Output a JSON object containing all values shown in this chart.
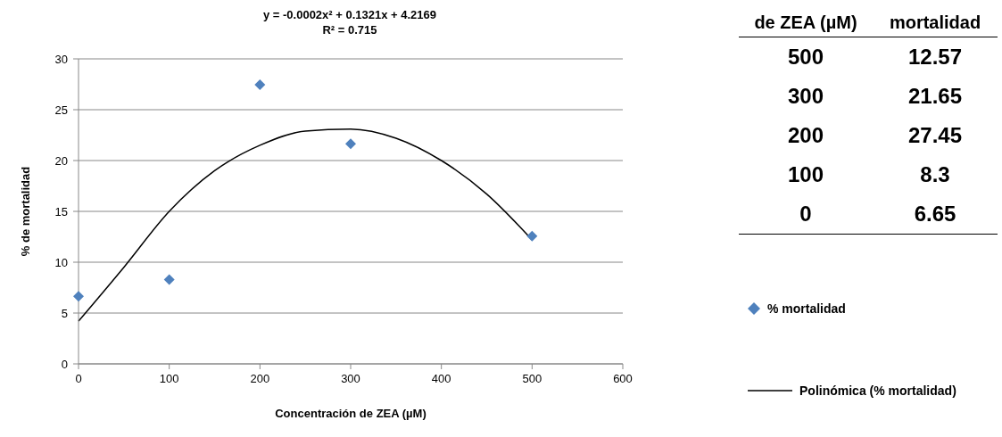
{
  "chart_data": {
    "type": "scatter",
    "title": "y = -0.0002x² + 0.1321x + 4.2169",
    "subtitle": "R² = 0.715",
    "xlabel": "Concentración de ZEA (µM)",
    "ylabel": "% de mortalidad",
    "xlim": [
      0,
      600
    ],
    "xticks": [
      0,
      100,
      200,
      300,
      400,
      500,
      600
    ],
    "ylim": [
      0,
      30
    ],
    "yticks": [
      0,
      5,
      10,
      15,
      20,
      25,
      30
    ],
    "grid": "y",
    "legend": "right",
    "annotations": [
      "de ZEA (µM)",
      "mortalidad",
      "500",
      "12.57",
      "300",
      "21.65",
      "200",
      "27.45",
      "100",
      "8.3",
      "0",
      "6.65"
    ],
    "series": [
      {
        "name": "% mortalidad",
        "type": "scatter",
        "marker": "diamond",
        "color": "#4f81bd",
        "x": [
          0,
          100,
          200,
          300,
          500
        ],
        "values": [
          6.65,
          8.3,
          27.45,
          21.65,
          12.57
        ]
      },
      {
        "name": "Polinómica (% mortalidad)",
        "type": "line",
        "marker": "none",
        "line_style": "solid",
        "color": "#000000",
        "x": [
          0,
          50,
          100,
          150,
          200,
          250,
          300,
          350,
          400,
          450,
          500
        ],
        "values": [
          4.2,
          9.5,
          15.0,
          19.0,
          21.5,
          22.9,
          23.1,
          22.2,
          20.0,
          16.7,
          12.2
        ]
      }
    ]
  }
}
